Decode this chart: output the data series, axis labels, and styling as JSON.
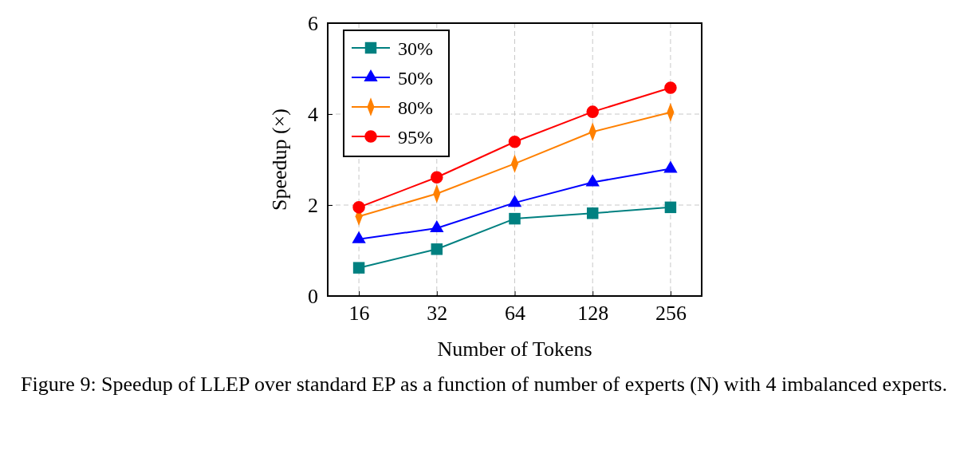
{
  "chart_data": {
    "type": "line",
    "categories": [
      "16",
      "32",
      "64",
      "128",
      "256"
    ],
    "xlabel": "Number of Tokens",
    "ylabel": "Speedup (×)",
    "ylim": [
      0,
      6
    ],
    "yticks": [
      0,
      2,
      4,
      6
    ],
    "grid": true,
    "legend": "top left",
    "line_style": "solid",
    "series": [
      {
        "name": "30%",
        "color": "#008080",
        "marker": "square",
        "values": [
          0.62,
          1.03,
          1.7,
          1.82,
          1.95
        ]
      },
      {
        "name": "50%",
        "color": "#0000ff",
        "marker": "triangle",
        "values": [
          1.25,
          1.49,
          2.05,
          2.5,
          2.8
        ]
      },
      {
        "name": "80%",
        "color": "#ff8000",
        "marker": "diamond",
        "values": [
          1.75,
          2.25,
          2.91,
          3.61,
          4.04
        ]
      },
      {
        "name": "95%",
        "color": "#ff0000",
        "marker": "circle",
        "values": [
          1.95,
          2.61,
          3.39,
          4.05,
          4.58
        ]
      }
    ],
    "annotations": [
      "Figure 9: Speedup of LLEP over standard EP as a function of number of experts (N) with 4 imbalanced experts."
    ]
  }
}
